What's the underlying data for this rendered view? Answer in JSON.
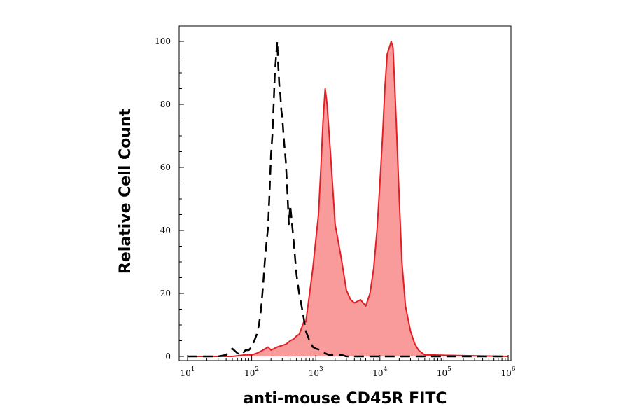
{
  "chart_data": {
    "type": "area",
    "title": "",
    "xlabel": "anti-mouse CD45R FITC",
    "ylabel": "Relative Cell Count",
    "x_scale": "log",
    "xlim": [
      10,
      1000000
    ],
    "ylim": [
      0,
      100
    ],
    "x_tick_labels": [
      {
        "base": "10",
        "exp": "1"
      },
      {
        "base": "10",
        "exp": "2"
      },
      {
        "base": "10",
        "exp": "3"
      },
      {
        "base": "10",
        "exp": "4"
      },
      {
        "base": "10",
        "exp": "5"
      },
      {
        "base": "10",
        "exp": "6"
      }
    ],
    "y_ticks": [
      "0",
      "20",
      "40",
      "60",
      "80",
      "100"
    ],
    "grid": false,
    "series": [
      {
        "style": "dashed line",
        "color": "#000000",
        "x": [
          10,
          20,
          30,
          40,
          50,
          60,
          70,
          80,
          90,
          100,
          110,
          120,
          130,
          140,
          150,
          160,
          170,
          180,
          190,
          200,
          210,
          220,
          230,
          240,
          250,
          260,
          270,
          280,
          290,
          300,
          320,
          340,
          360,
          380,
          400,
          450,
          500,
          550,
          600,
          650,
          700,
          800,
          900,
          1000,
          1200,
          1400,
          1600,
          2000,
          2500,
          3000,
          4000,
          5000,
          1000000
        ],
        "y": [
          0,
          0,
          0,
          0.5,
          2.5,
          1,
          0.5,
          2,
          2,
          3,
          5,
          7,
          10,
          15,
          22,
          30,
          36,
          41,
          52,
          64,
          70,
          80,
          90,
          95,
          100,
          92,
          86,
          83,
          78,
          76,
          68,
          62,
          52,
          42,
          48,
          37,
          26,
          20,
          16,
          12,
          8,
          5,
          3,
          2.5,
          2,
          1,
          0.5,
          0.5,
          0.5,
          0,
          0,
          0,
          0
        ]
      },
      {
        "style": "filled area",
        "color": "#e31e24",
        "fill": "#f99b9b",
        "x": [
          10,
          30,
          50,
          80,
          100,
          120,
          150,
          180,
          200,
          250,
          300,
          350,
          400,
          450,
          500,
          550,
          600,
          650,
          700,
          800,
          900,
          1000,
          1100,
          1200,
          1300,
          1400,
          1500,
          1700,
          2000,
          2500,
          3000,
          3500,
          4000,
          5000,
          6000,
          7000,
          8000,
          9000,
          10000,
          11000,
          12000,
          13000,
          14000,
          15000,
          16000,
          17000,
          18000,
          20000,
          22000,
          25000,
          30000,
          35000,
          40000,
          50000,
          1000000
        ],
        "y": [
          0,
          0,
          0,
          0.5,
          0.5,
          1,
          2,
          3,
          2,
          3,
          3.5,
          4,
          5,
          5.5,
          6.5,
          7,
          9,
          11,
          11,
          20,
          28,
          37,
          45,
          60,
          75,
          85,
          80,
          64,
          42,
          31,
          21,
          18,
          17,
          18,
          16,
          20,
          28,
          40,
          55,
          70,
          86,
          96,
          98,
          100,
          98,
          86,
          74,
          50,
          30,
          16,
          8,
          4,
          2,
          0.5,
          0
        ]
      }
    ]
  }
}
